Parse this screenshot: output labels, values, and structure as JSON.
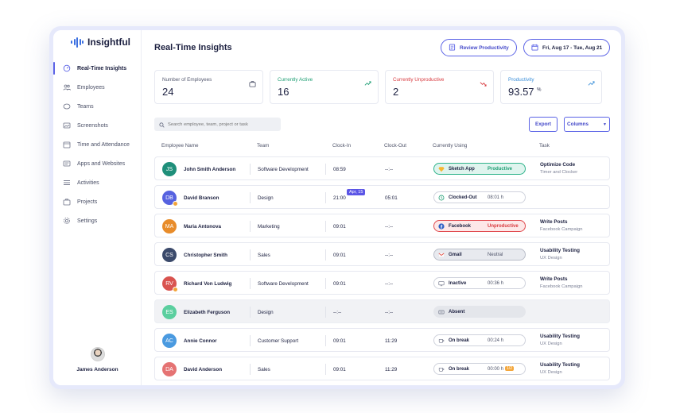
{
  "app": {
    "logo_text": "Insightful"
  },
  "sidebar": {
    "items": [
      {
        "label": "Real-Time Insights",
        "icon": "realtime-icon",
        "active": true
      },
      {
        "label": "Employees",
        "icon": "employees-icon",
        "active": false
      },
      {
        "label": "Teams",
        "icon": "teams-icon",
        "active": false
      },
      {
        "label": "Screenshots",
        "icon": "screenshots-icon",
        "active": false
      },
      {
        "label": "Time and Attendance",
        "icon": "calendar-icon",
        "active": false
      },
      {
        "label": "Apps and Websites",
        "icon": "apps-icon",
        "active": false
      },
      {
        "label": "Activities",
        "icon": "activities-icon",
        "active": false
      },
      {
        "label": "Projects",
        "icon": "projects-icon",
        "active": false
      },
      {
        "label": "Settings",
        "icon": "settings-icon",
        "active": false
      }
    ],
    "user_name": "James Anderson"
  },
  "header": {
    "title": "Real-Time Insights",
    "review_label": "Review Productivity",
    "date_range": "Fri, Aug 17 - Tue, Aug 21"
  },
  "stats": {
    "employees": {
      "label": "Number of Employees",
      "value": "24"
    },
    "active": {
      "label": "Currently Active",
      "value": "16"
    },
    "unproductive": {
      "label": "Currently Unproductive",
      "value": "2"
    },
    "productivity": {
      "label": "Productivity",
      "value": "93.57",
      "unit": "%"
    }
  },
  "colors": {
    "accent": "#5b63e6",
    "active_green": "#1d9e73",
    "unproductive_red": "#d83a3f",
    "productivity_blue": "#3b8fd9"
  },
  "toolbar": {
    "search_placeholder": "Search employee, team, project or task",
    "export_label": "Export",
    "columns_label": "Columns"
  },
  "table": {
    "headers": {
      "name": "Employee Name",
      "team": "Team",
      "clock_in": "Clock-In",
      "clock_out": "Clock-Out",
      "using": "Currently Using",
      "task": "Task"
    },
    "rows": [
      {
        "initials": "JS",
        "avatar_color": "#1f8f7a",
        "name": "John Smith Anderson",
        "team": "Software Development",
        "clock_in": "08:59",
        "clock_out": "--:--",
        "app": "Sketch App",
        "app_icon": "sketch-icon",
        "status": "Productive",
        "status_kind": "green",
        "task": "Optimize Code",
        "task_sub": "Timer and Clocker"
      },
      {
        "initials": "DB",
        "avatar_color": "#5662e0",
        "badge": true,
        "name": "David Branson",
        "team": "Design",
        "clock_in": "21:00",
        "clock_in_tag": "Apr, 15",
        "clock_out": "05:01",
        "app": "Clocked-Out",
        "app_icon": "clock-icon",
        "status": "08:01 h",
        "status_kind": "plain",
        "task": "",
        "task_sub": ""
      },
      {
        "initials": "MA",
        "avatar_color": "#e88c2a",
        "name": "Maria Antonova",
        "team": "Marketing",
        "clock_in": "09:01",
        "clock_out": "--:--",
        "app": "Facebook",
        "app_icon": "facebook-icon",
        "status": "Unproductive",
        "status_kind": "red",
        "task": "Write Posts",
        "task_sub": "Facebook Campaign"
      },
      {
        "initials": "CS",
        "avatar_color": "#3b4a6b",
        "name": "Christopher Smith",
        "team": "Sales",
        "clock_in": "09:01",
        "clock_out": "--:--",
        "app": "Gmail",
        "app_icon": "gmail-icon",
        "status": "Neutral",
        "status_kind": "neutral",
        "task": "Usability Testing",
        "task_sub": "UX Design"
      },
      {
        "initials": "RV",
        "avatar_color": "#d9534f",
        "badge": true,
        "name": "Richard Von Ludwig",
        "team": "Software Development",
        "clock_in": "09:01",
        "clock_out": "--:--",
        "app": "Inactive",
        "app_icon": "inactive-icon",
        "status": "00:36 h",
        "status_kind": "plain",
        "task": "Write Posts",
        "task_sub": "Facebook Campaign"
      },
      {
        "initials": "ES",
        "avatar_color": "#5bcf9f",
        "name": "Elizabeth Ferguson",
        "team": "Design",
        "clock_in": "--:--",
        "clock_out": "--:--",
        "app": "Absent",
        "app_icon": "absent-icon",
        "status": "",
        "status_kind": "absent",
        "task": "",
        "task_sub": "",
        "grey": true
      },
      {
        "initials": "AC",
        "avatar_color": "#4a9ae0",
        "name": "Annie Connor",
        "team": "Customer Support",
        "clock_in": "09:01",
        "clock_out": "11:29",
        "app": "On break",
        "app_icon": "break-icon",
        "status": "00:24 h",
        "status_kind": "plain",
        "task": "Usability Testing",
        "task_sub": "UX Design"
      },
      {
        "initials": "DA",
        "avatar_color": "#e57373",
        "name": "David Anderson",
        "team": "Sales",
        "clock_in": "09:01",
        "clock_out": "11:29",
        "app": "On break",
        "app_icon": "break-icon",
        "status": "00:00 h",
        "status_tag": "1/2",
        "status_kind": "plain",
        "task": "Usability Testing",
        "task_sub": "UX Design"
      }
    ]
  }
}
